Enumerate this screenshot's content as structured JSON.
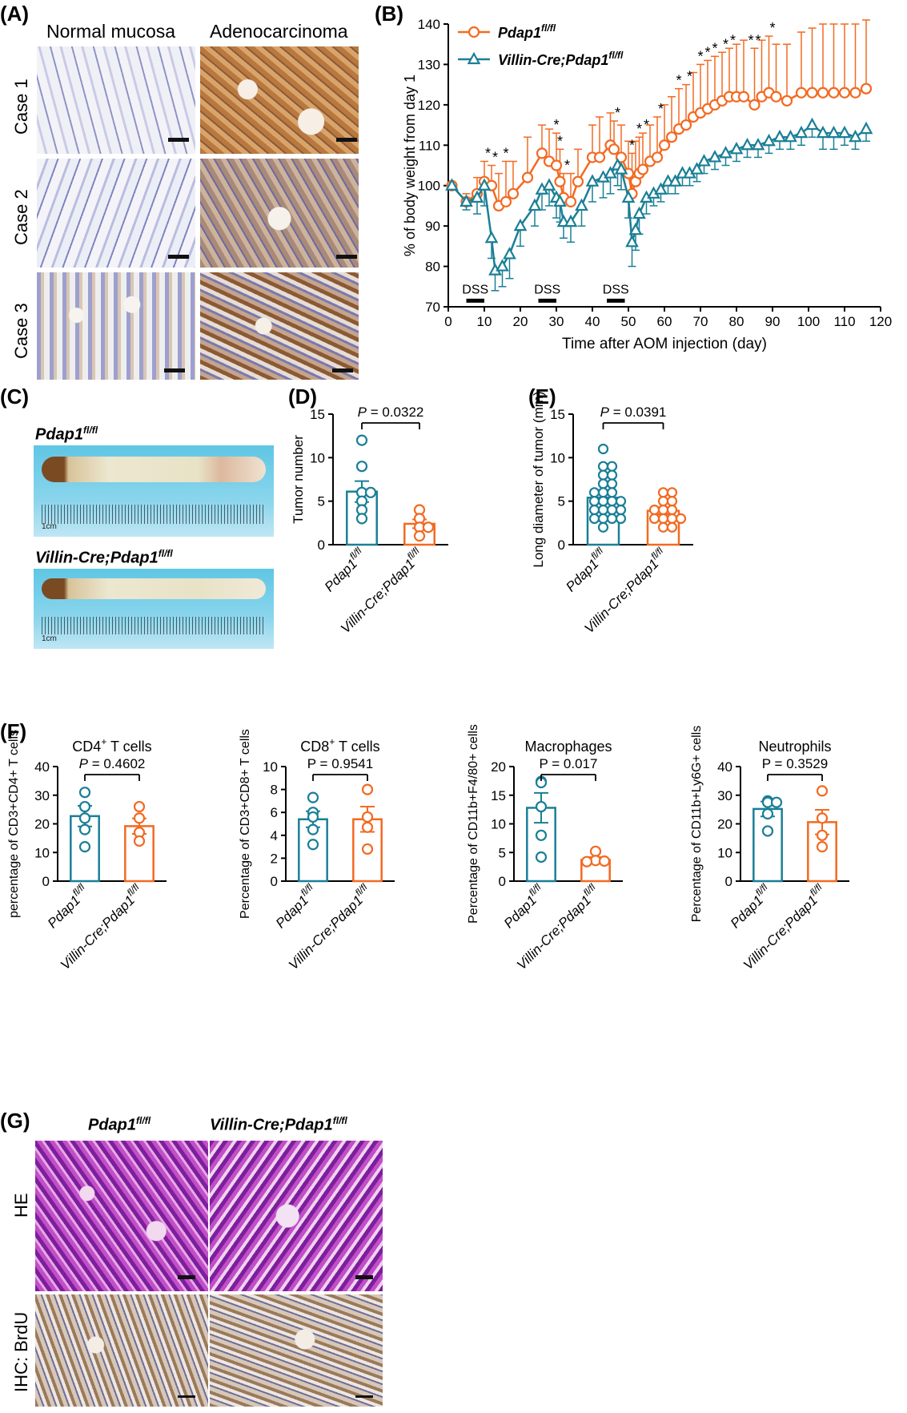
{
  "panel_A": {
    "label": "(A)",
    "col_titles": [
      "Normal mucosa",
      "Adenocarcinoma"
    ],
    "row_labels": [
      "Case 1",
      "Case 2",
      "Case 3"
    ]
  },
  "panel_C": {
    "label": "(C)",
    "top_title": "Pdap1",
    "top_sup": "fl/fl",
    "bottom_title": "Villin-Cre;Pdap1",
    "bottom_sup": "fl/fl",
    "ruler_text": "1cm"
  },
  "panel_G": {
    "label": "(G)",
    "col1_title": "Pdap1",
    "col1_sup": "fl/fl",
    "col2_title": "Villin-Cre;Pdap1",
    "col2_sup": "fl/fl",
    "row1_label": "HE",
    "row2_label": "IHC: BrdU"
  },
  "panel_F_label": "(F)",
  "colors": {
    "teal": "#1a7f96",
    "orange": "#f26a22",
    "black": "#000000"
  },
  "chart_data": [
    {
      "id": "B",
      "label": "(B)",
      "type": "line",
      "xlabel": "Time after AOM injection (day)",
      "ylabel": "% of body weight from day 1",
      "xlim": [
        0,
        120
      ],
      "ylim": [
        70,
        140
      ],
      "xticks": [
        0,
        10,
        20,
        30,
        40,
        50,
        60,
        70,
        80,
        90,
        100,
        110,
        120
      ],
      "yticks": [
        70,
        80,
        90,
        100,
        110,
        120,
        130,
        140
      ],
      "dss_label": "DSS",
      "dss_periods": [
        [
          5,
          10
        ],
        [
          25,
          30
        ],
        [
          44,
          49
        ]
      ],
      "series": [
        {
          "name": "Pdap1",
          "sup": "fl/fl",
          "color": "#f26a22",
          "marker": "circle",
          "x": [
            1,
            5,
            8,
            10,
            12,
            14,
            16,
            18,
            22,
            26,
            28,
            30,
            31,
            32,
            34,
            36,
            40,
            42,
            45,
            46,
            48,
            50,
            51,
            52,
            53,
            54,
            56,
            58,
            60,
            62,
            64,
            66,
            68,
            70,
            72,
            74,
            76,
            78,
            80,
            82,
            85,
            87,
            89,
            91,
            94,
            98,
            101,
            104,
            107,
            110,
            113,
            116
          ],
          "y": [
            100,
            96,
            98,
            101,
            100,
            95,
            96,
            98,
            102,
            108,
            106,
            105,
            101,
            97,
            96,
            101,
            107,
            107,
            110,
            109,
            107,
            103,
            98,
            101,
            103,
            104,
            106,
            107,
            110,
            112,
            114,
            115,
            117,
            118,
            119,
            120,
            121,
            122,
            122,
            122,
            120,
            122,
            123,
            122,
            121,
            123,
            123,
            123,
            123,
            123,
            123,
            124
          ],
          "err": [
            0,
            2,
            4,
            5,
            5,
            8,
            10,
            8,
            10,
            7,
            8,
            8,
            8,
            6,
            7,
            8,
            8,
            10,
            8,
            7,
            8,
            8,
            10,
            10,
            9,
            9,
            9,
            10,
            10,
            10,
            10,
            10,
            11,
            12,
            12,
            12,
            12,
            12,
            13,
            14,
            14,
            14,
            14,
            13,
            14,
            15,
            16,
            17,
            17,
            17,
            17,
            17
          ]
        },
        {
          "name": "Villin-Cre;Pdap1",
          "sup": "fl/fl",
          "color": "#1a7f96",
          "marker": "triangle",
          "x": [
            1,
            5,
            8,
            10,
            12,
            13,
            15,
            17,
            20,
            24,
            26,
            28,
            30,
            31,
            32,
            34,
            37,
            40,
            43,
            45,
            47,
            48,
            50,
            51,
            52,
            53,
            55,
            57,
            59,
            61,
            63,
            65,
            67,
            69,
            71,
            74,
            77,
            80,
            83,
            86,
            89,
            92,
            95,
            98,
            101,
            104,
            107,
            110,
            113,
            116
          ],
          "y": [
            100,
            96,
            97,
            100,
            87,
            79,
            80,
            83,
            90,
            95,
            99,
            100,
            97,
            96,
            91,
            91,
            95,
            101,
            102,
            103,
            105,
            104,
            97,
            86,
            89,
            93,
            97,
            98,
            99,
            101,
            101,
            103,
            103,
            104,
            106,
            107,
            108,
            109,
            110,
            110,
            111,
            112,
            112,
            113,
            115,
            113,
            113,
            113,
            112,
            114
          ],
          "err": [
            0,
            2,
            4,
            5,
            5,
            5,
            5,
            6,
            5,
            5,
            5,
            5,
            5,
            5,
            4,
            5,
            5,
            5,
            5,
            5,
            5,
            5,
            5,
            6,
            5,
            5,
            4,
            3,
            3,
            3,
            3,
            3,
            3,
            3,
            3,
            3,
            3,
            3,
            3,
            3,
            3,
            3,
            3,
            3,
            3,
            4,
            4,
            3,
            3,
            3
          ]
        }
      ],
      "significance_days": [
        11,
        13,
        16,
        30,
        31,
        33,
        47,
        51,
        53,
        55,
        59,
        64,
        67,
        70,
        72,
        74,
        77,
        79,
        84,
        86,
        90
      ],
      "significance_mark": "*"
    },
    {
      "id": "D",
      "label": "(D)",
      "type": "bar",
      "ylabel": "Tumor number",
      "ylim": [
        0,
        15
      ],
      "yticks": [
        0,
        5,
        10,
        15
      ],
      "categories": [
        {
          "name": "Pdap1",
          "sup": "fl/fl"
        },
        {
          "name": "Villin-Cre;Pdap1",
          "sup": "fl/fl"
        }
      ],
      "means": [
        6.1,
        2.4
      ],
      "sem": [
        1.2,
        0.5
      ],
      "points": [
        [
          12,
          9,
          6,
          6,
          5,
          4,
          3
        ],
        [
          4,
          3,
          2,
          2,
          1
        ]
      ],
      "pvalue": "P = 0.0322",
      "p_italic": true
    },
    {
      "id": "E",
      "label": "(E)",
      "type": "bar",
      "ylabel": "Long diameter of tumor (mm)",
      "ylim": [
        0,
        15
      ],
      "yticks": [
        0,
        5,
        10,
        15
      ],
      "categories": [
        {
          "name": "Pdap1",
          "sup": "fl/fl"
        },
        {
          "name": "Villin-Cre;Pdap1",
          "sup": "fl/fl"
        }
      ],
      "means": [
        5.4,
        3.9
      ],
      "sem": [
        0.5,
        0.4
      ],
      "points": [
        [
          11,
          9,
          9,
          8,
          8,
          7,
          7,
          6,
          6,
          6,
          5,
          5,
          5,
          5,
          4,
          4,
          4,
          4,
          3,
          3,
          3,
          3,
          2
        ],
        [
          6,
          6,
          5,
          5,
          4,
          4,
          4,
          3,
          3,
          3,
          3,
          2,
          2
        ]
      ],
      "pvalue": "P = 0.0391",
      "p_italic": true
    },
    {
      "id": "F1",
      "type": "bar",
      "title": "CD4",
      "title_sup": "+",
      "title_rest": " T cells",
      "ylabel": "percentage of CD3+CD4+ T cells",
      "ylim": [
        0,
        40
      ],
      "yticks": [
        0,
        10,
        20,
        30,
        40
      ],
      "categories": [
        {
          "name": "Pdap1",
          "sup": "fl/fl"
        },
        {
          "name": "Villin-Cre;Pdap1",
          "sup": "fl/fl"
        }
      ],
      "means": [
        22.7,
        19.2
      ],
      "sem": [
        3.6,
        2.7
      ],
      "points": [
        [
          31,
          26,
          22,
          18,
          12
        ],
        [
          26,
          22,
          17,
          14
        ]
      ],
      "pvalue": "P = 0.4602",
      "p_italic": true
    },
    {
      "id": "F2",
      "type": "bar",
      "title": "CD8",
      "title_sup": "+",
      "title_rest": " T cells",
      "ylabel": "Percentage of CD3+CD8+ T cells",
      "ylim": [
        0,
        10
      ],
      "yticks": [
        0,
        2,
        4,
        6,
        8,
        10
      ],
      "categories": [
        {
          "name": "Pdap1",
          "sup": "fl/fl"
        },
        {
          "name": "Villin-Cre;Pdap1",
          "sup": "fl/fl"
        }
      ],
      "means": [
        5.4,
        5.4
      ],
      "sem": [
        0.7,
        1.1
      ],
      "points": [
        [
          7.3,
          6,
          5.6,
          4.5,
          3.2
        ],
        [
          8,
          5.6,
          4.7,
          2.8
        ]
      ],
      "pvalue": "P = 0.9541",
      "p_italic": false
    },
    {
      "id": "F3",
      "type": "bar",
      "title": "Macrophages",
      "title_sup": "",
      "title_rest": "",
      "ylabel": "Percentage of CD11b+F4/80+ cells",
      "ylim": [
        0,
        20
      ],
      "yticks": [
        0,
        5,
        10,
        15,
        20
      ],
      "categories": [
        {
          "name": "Pdap1",
          "sup": "fl/fl"
        },
        {
          "name": "Villin-Cre;Pdap1",
          "sup": "fl/fl"
        }
      ],
      "means": [
        12.8,
        3.7
      ],
      "sem": [
        2.6,
        0.5
      ],
      "points": [
        [
          17.4,
          17.2,
          13,
          8,
          4.2
        ],
        [
          5.2,
          3.6,
          3.5,
          3.4
        ]
      ],
      "pvalue": "P = 0.017",
      "p_italic": false
    },
    {
      "id": "F4",
      "type": "bar",
      "title": "Neutrophils",
      "title_sup": "",
      "title_rest": "",
      "ylabel": "Percentage of CD11b+Ly6G+ cells",
      "ylim": [
        0,
        40
      ],
      "yticks": [
        0,
        10,
        20,
        30,
        40
      ],
      "categories": [
        {
          "name": "Pdap1",
          "sup": "fl/fl"
        },
        {
          "name": "Villin-Cre;Pdap1",
          "sup": "fl/fl"
        }
      ],
      "means": [
        25.2,
        20.6
      ],
      "sem": [
        2.6,
        4.3
      ],
      "points": [
        [
          28,
          27.5,
          27.5,
          23.5,
          17.5
        ],
        [
          31.5,
          22,
          16,
          12
        ]
      ],
      "pvalue": "P = 0.3529",
      "p_italic": false
    }
  ]
}
